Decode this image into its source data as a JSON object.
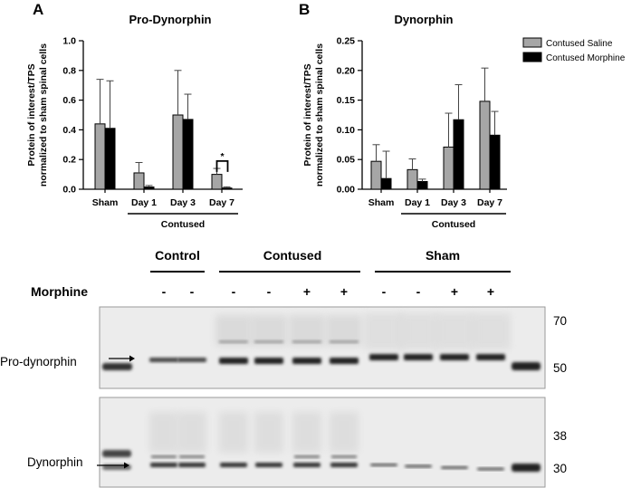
{
  "panels": {
    "a": "A",
    "b": "B"
  },
  "colors": {
    "saline": "#a6a6a6",
    "morphine": "#000000",
    "stroke": "#000000"
  },
  "legend": [
    {
      "label": "Contused Saline",
      "color": "#a6a6a6"
    },
    {
      "label": "Contused Morphine",
      "color": "#000000"
    }
  ],
  "chart_data": [
    {
      "type": "bar",
      "title": "Pro-Dynorphin",
      "ylabel": [
        "Protein of interest/TPS",
        "normalized to sham spinal cells"
      ],
      "categories": [
        "Sham",
        "Day 1",
        "Day 3",
        "Day 7"
      ],
      "group_label": "Contused",
      "ylim": [
        0,
        1.0
      ],
      "yticks": [
        "0.0",
        "0.2",
        "0.4",
        "0.6",
        "0.8",
        "1.0"
      ],
      "series": [
        {
          "name": "Contused Saline",
          "values": [
            0.44,
            0.11,
            0.5,
            0.1
          ],
          "errors": [
            0.3,
            0.07,
            0.3,
            0.04
          ]
        },
        {
          "name": "Contused Morphine",
          "values": [
            0.41,
            0.015,
            0.47,
            0.008
          ],
          "errors": [
            0.32,
            0.01,
            0.17,
            0.008
          ]
        }
      ],
      "annotation": "*"
    },
    {
      "type": "bar",
      "title": "Dynorphin",
      "ylabel": [
        "Protein of interest/TPS",
        "normalized to sham spinal cells"
      ],
      "categories": [
        "Sham",
        "Day 1",
        "Day 3",
        "Day 7"
      ],
      "group_label": "Contused",
      "ylim": [
        0,
        0.25
      ],
      "yticks": [
        "0.00",
        "0.05",
        "0.10",
        "0.15",
        "0.20",
        "0.25"
      ],
      "series": [
        {
          "name": "Contused Saline",
          "values": [
            0.047,
            0.033,
            0.071,
            0.148
          ],
          "errors": [
            0.028,
            0.018,
            0.057,
            0.056
          ]
        },
        {
          "name": "Contused Morphine",
          "values": [
            0.018,
            0.013,
            0.117,
            0.091
          ],
          "errors": [
            0.046,
            0.004,
            0.059,
            0.04
          ]
        }
      ]
    }
  ],
  "blot": {
    "groups": [
      "Control",
      "Contused",
      "Sham"
    ],
    "treatment_label": "Morphine",
    "lane_signs": [
      "-",
      "-",
      "-",
      "-",
      "+",
      "+",
      "-",
      "-",
      "+",
      "+"
    ],
    "upper_label": "Pro-dynorphin",
    "lower_label": "Dynorphin",
    "upper_markers": [
      "70",
      "50"
    ],
    "lower_markers": [
      "38",
      "30"
    ]
  }
}
